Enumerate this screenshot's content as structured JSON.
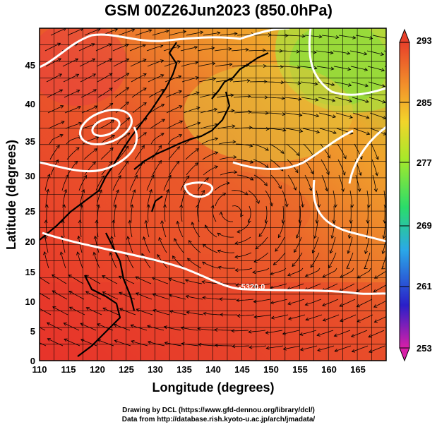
{
  "title": "GSM 00Z26Jun2023 (850.0hPa)",
  "credits": {
    "line1": "Drawing by DCL (https://www.gfd-dennou.org/library/dcl/)",
    "line2": "Data from http://database.rish.kyoto-u.ac.jp/arch/jmadata/"
  },
  "map": {
    "xlabel": "Longitude (degrees)",
    "ylabel": "Latitude  (degrees)",
    "x_ticks": [
      "110",
      "115",
      "120",
      "125",
      "130",
      "135",
      "140",
      "145",
      "150",
      "155",
      "160",
      "165"
    ],
    "y_ticks": [
      "0",
      "5",
      "10",
      "15",
      "20",
      "25",
      "30",
      "35",
      "40",
      "45"
    ],
    "xlim": [
      110,
      170
    ],
    "ylim": [
      0,
      50
    ],
    "contour_label": "-5320.0",
    "grid": true,
    "colors": {
      "warm": "#e8432a",
      "mid": "#f29a2a",
      "cool": "#d6d23a",
      "cold": "#7fdc3a",
      "contour": "#ffffff",
      "streamline": "#000000"
    }
  },
  "colorbar": {
    "ticks": [
      "293",
      "285",
      "277",
      "269",
      "261",
      "253"
    ],
    "range": [
      253,
      293
    ],
    "colors": [
      "#d81fa8",
      "#2a1fc8",
      "#2aa8e8",
      "#2adc6a",
      "#a8e82a",
      "#f2d42a",
      "#f2902a",
      "#e8402a"
    ]
  }
}
